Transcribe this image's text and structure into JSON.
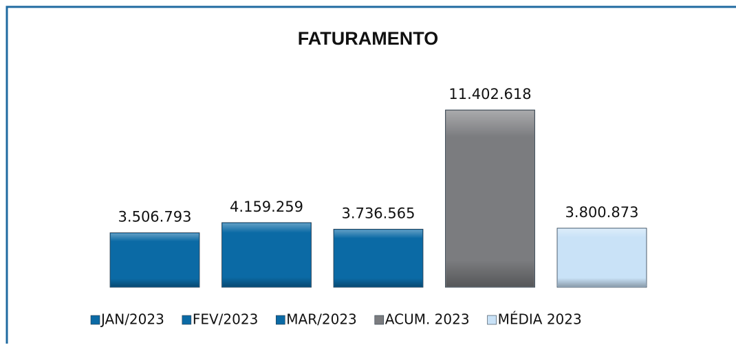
{
  "chart_data": {
    "type": "bar",
    "title": "FATURAMENTO",
    "series": [
      {
        "name": "JAN/2023",
        "color": "#0b6aa5",
        "values": [
          3506793
        ],
        "value_labels": [
          "3.506.793"
        ]
      },
      {
        "name": "FEV/2023",
        "color": "#0b6aa5",
        "values": [
          4159259
        ],
        "value_labels": [
          "4.159.259"
        ]
      },
      {
        "name": "MAR/2023",
        "color": "#0b6aa5",
        "values": [
          3736565
        ],
        "value_labels": [
          "3.736.565"
        ]
      },
      {
        "name": "ACUM. 2023",
        "color": "#7b7c7f",
        "values": [
          11402618
        ],
        "value_labels": [
          "11.402.618"
        ]
      },
      {
        "name": "MÉDIA 2023",
        "color": "#c9e2f7",
        "values": [
          3800873
        ],
        "value_labels": [
          "3.800.873"
        ]
      }
    ]
  }
}
